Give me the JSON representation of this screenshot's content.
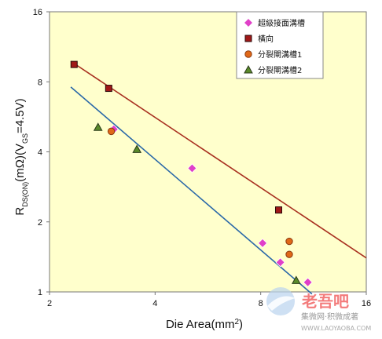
{
  "chart_data": {
    "type": "scatter",
    "xlabel": "Die Area(mm²)",
    "ylabel": "R_DS(ON)(mΩ)(V_GS=4.5V)",
    "xscale": "log2",
    "yscale": "log2",
    "xlim": [
      2,
      16
    ],
    "ylim": [
      1,
      16
    ],
    "xticks": [
      "2",
      "4",
      "8",
      "16"
    ],
    "yticks": [
      "1",
      "2",
      "4",
      "8",
      "16"
    ],
    "grid": false,
    "legend": "top-right",
    "series": [
      {
        "name": "超級接面溝槽",
        "marker": "diamond",
        "color": "#e040c8",
        "points": [
          [
            3.05,
            5.0
          ],
          [
            5.1,
            3.4
          ],
          [
            8.1,
            1.62
          ],
          [
            9.1,
            1.34
          ],
          [
            10.9,
            1.1
          ]
        ]
      },
      {
        "name": "橫向",
        "marker": "square",
        "color": "#a01818",
        "points": [
          [
            2.35,
            9.5
          ],
          [
            2.95,
            7.5
          ],
          [
            9.0,
            2.25
          ]
        ]
      },
      {
        "name": "分裂閘溝槽1",
        "marker": "circle",
        "color": "#e06818",
        "points": [
          [
            3.0,
            4.9
          ],
          [
            9.65,
            1.65
          ],
          [
            9.65,
            1.45
          ]
        ]
      },
      {
        "name": "分裂閘溝槽2",
        "marker": "triangle",
        "color": "#5a8a2a",
        "points": [
          [
            2.75,
            5.1
          ],
          [
            3.55,
            4.1
          ],
          [
            10.1,
            1.12
          ]
        ]
      }
    ],
    "trendlines": [
      {
        "color": "#a83020",
        "from": [
          2.3,
          9.8
        ],
        "to": [
          16,
          1.4
        ]
      },
      {
        "color": "#2a68a8",
        "from": [
          2.3,
          7.6
        ],
        "to": [
          11.2,
          0.98
        ]
      }
    ]
  },
  "watermark": {
    "logo_text": "老吾吧",
    "line1": "集微网·积微成著",
    "line2": "WWW.LAOYAOBA.COM"
  },
  "colors": {
    "plot_bg": "#ffffcc",
    "axis": "#777777"
  }
}
